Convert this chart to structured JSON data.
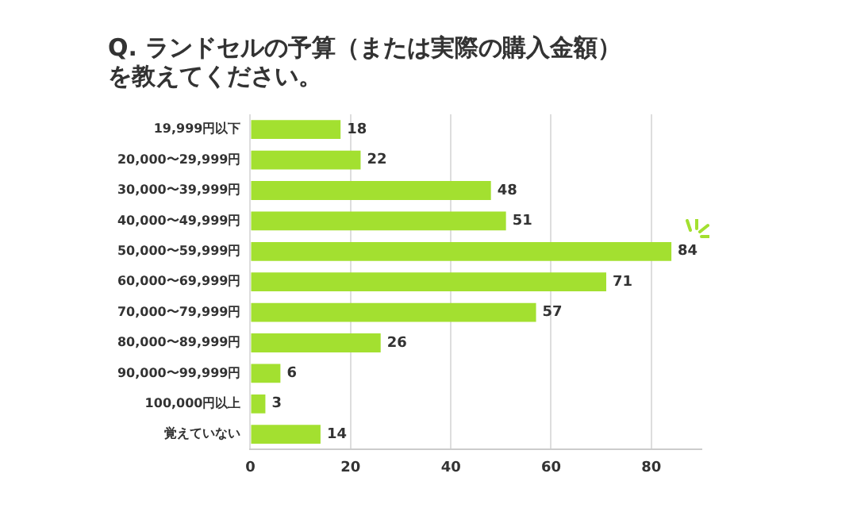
{
  "chart_data": {
    "type": "bar",
    "orientation": "horizontal",
    "title": "Q. ランドセルの予算（または実際の購入金額）を教えてください。",
    "categories": [
      "19,999円以下",
      "20,000〜29,999円",
      "30,000〜39,999円",
      "40,000〜49,999円",
      "50,000〜59,999円",
      "60,000〜69,999円",
      "70,000〜79,999円",
      "80,000〜89,999円",
      "90,000〜99,999円",
      "100,000円以上",
      "覚えていない"
    ],
    "values": [
      18,
      22,
      48,
      51,
      84,
      71,
      57,
      26,
      6,
      3,
      14
    ],
    "color": "#a3e030",
    "xlim": [
      0,
      90
    ],
    "xticks": [
      0,
      20,
      40,
      60,
      80
    ],
    "grid": "x",
    "data_labels": true,
    "legend": false
  }
}
